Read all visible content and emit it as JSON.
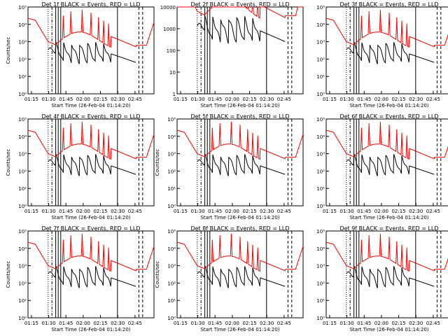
{
  "figure": {
    "legend_colors": {
      "events": "#000000",
      "lld": "#ff0000"
    }
  },
  "chart_data": [
    {
      "type": "line",
      "title": "Det 1f BLACK = Events, RED = LLD",
      "xlabel": "Start Time (26-Feb-04 01:14:20)",
      "ylabel": "Counts/sec",
      "yscale": "log",
      "ylim_exp": [
        0,
        5
      ],
      "ytick_labels": [
        "10⁰",
        "10¹",
        "10²",
        "10³",
        "10⁴",
        "10⁵"
      ],
      "xtick_labels": [
        "01:15",
        "01:30",
        "01:45",
        "02:00",
        "02:15",
        "02:30",
        "02:45"
      ]
    },
    {
      "type": "line",
      "title": "Det 2f BLACK = Events, RED = LLD",
      "xlabel": "Start Time (26-Feb-04 01:14:20)",
      "ylabel": "",
      "yscale": "log",
      "ylim_exp": [
        0,
        4
      ],
      "ytick_labels": [
        "1",
        "10",
        "100",
        "1000",
        "10000"
      ],
      "xtick_labels": [
        "01:15",
        "01:30",
        "01:45",
        "02:00",
        "02:15",
        "02:30",
        "02:45"
      ]
    },
    {
      "type": "line",
      "title": "Det 3f BLACK = Events, RED = LLD",
      "xlabel": "Start Time (26-Feb-04 01:14:20)",
      "ylabel": "",
      "yscale": "log",
      "ylim_exp": [
        0,
        5
      ],
      "ytick_labels": [
        "10⁰",
        "10¹",
        "10²",
        "10³",
        "10⁴",
        "10⁵"
      ],
      "xtick_labels": [
        "01:15",
        "01:30",
        "01:45",
        "02:00",
        "02:15",
        "02:30",
        "02:45"
      ]
    },
    {
      "type": "line",
      "title": "Det 4f BLACK = Events, RED = LLD",
      "xlabel": "Start Time (26-Feb-04 01:14:20)",
      "ylabel": "Counts/sec",
      "yscale": "log",
      "ylim_exp": [
        0,
        5
      ],
      "ytick_labels": [
        "10⁰",
        "10¹",
        "10²",
        "10³",
        "10⁴",
        "10⁵"
      ],
      "xtick_labels": [
        "01:15",
        "01:30",
        "01:45",
        "02:00",
        "02:15",
        "02:30",
        "02:45"
      ]
    },
    {
      "type": "line",
      "title": "Det 5f BLACK = Events, RED = LLD",
      "xlabel": "Start Time (26-Feb-04 01:14:20)",
      "ylabel": "Counts/sec",
      "yscale": "log",
      "ylim_exp": [
        0,
        5
      ],
      "ytick_labels": [
        "10⁰",
        "10¹",
        "10²",
        "10³",
        "10⁴",
        "10⁵"
      ],
      "xtick_labels": [
        "01:15",
        "01:30",
        "01:45",
        "02:00",
        "02:15",
        "02:30",
        "02:45"
      ]
    },
    {
      "type": "line",
      "title": "Det 6f BLACK = Events, RED = LLD",
      "xlabel": "Start Time (26-Feb-04 01:14:20)",
      "ylabel": "",
      "yscale": "log",
      "ylim_exp": [
        0,
        5
      ],
      "ytick_labels": [
        "10⁰",
        "10¹",
        "10²",
        "10³",
        "10⁴",
        "10⁵"
      ],
      "xtick_labels": [
        "01:15",
        "01:30",
        "01:45",
        "02:00",
        "02:15",
        "02:30",
        "02:45"
      ]
    },
    {
      "type": "line",
      "title": "Det 7f BLACK = Events, RED = LLD",
      "xlabel": "Start Time (26-Feb-04 01:14:20)",
      "ylabel": "Counts/sec",
      "yscale": "log",
      "ylim_exp": [
        0,
        5
      ],
      "ytick_labels": [
        "10⁰",
        "10¹",
        "10²",
        "10³",
        "10⁴",
        "10⁵"
      ],
      "xtick_labels": [
        "01:15",
        "01:30",
        "01:45",
        "02:00",
        "02:15",
        "02:30",
        "02:45"
      ]
    },
    {
      "type": "line",
      "title": "Det 8f BLACK = Events, RED = LLD",
      "xlabel": "Start Time (26-Feb-04 01:14:20)",
      "ylabel": "Counts/sec",
      "yscale": "log",
      "ylim_exp": [
        0,
        5
      ],
      "ytick_labels": [
        "10⁰",
        "10¹",
        "10²",
        "10³",
        "10⁴",
        "10⁵"
      ],
      "xtick_labels": [
        "01:15",
        "01:30",
        "01:45",
        "02:00",
        "02:15",
        "02:30",
        "02:45"
      ]
    },
    {
      "type": "line",
      "title": "Det 9f BLACK = Events, RED = LLD",
      "xlabel": "Start Time (26-Feb-04 01:14:20)",
      "ylabel": "",
      "yscale": "log",
      "ylim_exp": [
        0,
        5
      ],
      "ytick_labels": [
        "10⁰",
        "10¹",
        "10²",
        "10³",
        "10⁴",
        "10⁵"
      ],
      "xtick_labels": [
        "01:15",
        "01:30",
        "01:45",
        "02:00",
        "02:15",
        "02:30",
        "02:45"
      ]
    }
  ]
}
